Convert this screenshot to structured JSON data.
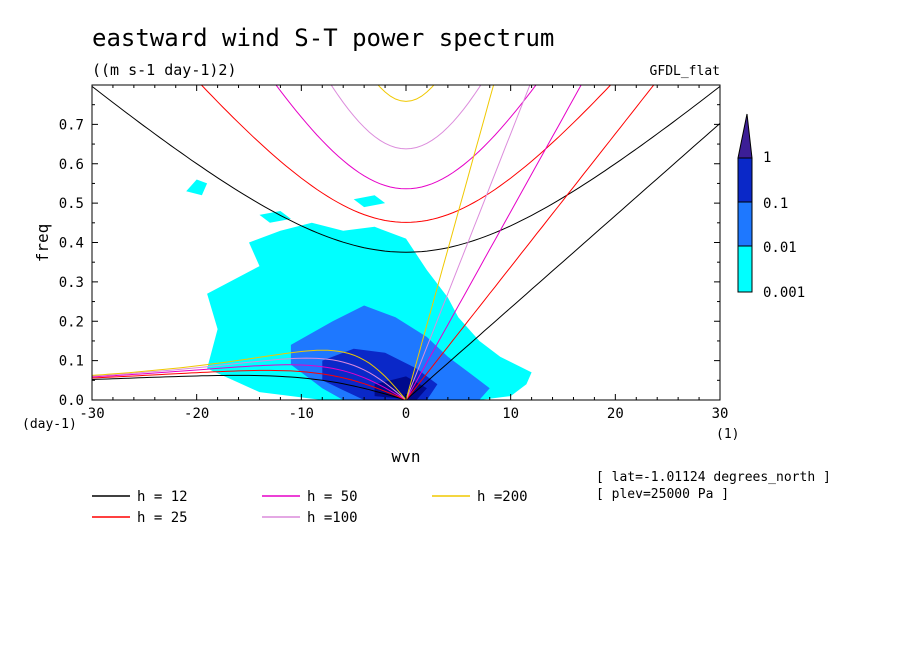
{
  "chart_data": {
    "type": "heatmap",
    "title": "eastward wind S-T power spectrum",
    "subtitle": "((m s-1 day-1)2)",
    "dataset_label": "GFDL_flat",
    "xlabel": "wvn",
    "ylabel": "freq",
    "x_unit_label": "(1)",
    "y_unit_label": "(day-1)",
    "xlim": [
      -30,
      30
    ],
    "ylim": [
      0,
      0.8
    ],
    "x_ticks": [
      -30,
      -20,
      -10,
      0,
      10,
      20,
      30
    ],
    "y_ticks": [
      0.0,
      0.1,
      0.2,
      0.3,
      0.4,
      0.5,
      0.6,
      0.7
    ],
    "x_tick_labels": [
      "-30",
      "-20",
      "-10",
      "0",
      "10",
      "20",
      "30"
    ],
    "y_tick_labels": [
      "0.0",
      "0.1",
      "0.2",
      "0.3",
      "0.4",
      "0.5",
      "0.6",
      "0.7"
    ],
    "colorbar": {
      "levels": [
        "0.001",
        "0.01",
        "0.1",
        "1"
      ],
      "colors": [
        "#00ffff",
        "#1e78ff",
        "#0a28c8",
        "#000a8c",
        "#3c1e96"
      ]
    },
    "contour_regions": [
      {
        "level": 0.001,
        "color": "#00ffff",
        "polygon": [
          [
            -14,
            0.02
          ],
          [
            -19,
            0.08
          ],
          [
            -18,
            0.18
          ],
          [
            -19,
            0.27
          ],
          [
            -14,
            0.34
          ],
          [
            -15,
            0.4
          ],
          [
            -12,
            0.43
          ],
          [
            -9,
            0.45
          ],
          [
            -6,
            0.43
          ],
          [
            -3,
            0.44
          ],
          [
            0,
            0.41
          ],
          [
            2,
            0.33
          ],
          [
            4,
            0.26
          ],
          [
            5,
            0.21
          ],
          [
            7,
            0.15
          ],
          [
            9,
            0.11
          ],
          [
            12,
            0.07
          ],
          [
            11.5,
            0.04
          ],
          [
            10,
            0.01
          ],
          [
            7,
            0.0
          ],
          [
            -8,
            0.0
          ]
        ]
      },
      {
        "level": 0.001,
        "color": "#00ffff",
        "polygon": [
          [
            -21,
            0.53
          ],
          [
            -20,
            0.56
          ],
          [
            -19,
            0.55
          ],
          [
            -19.5,
            0.52
          ]
        ]
      },
      {
        "level": 0.001,
        "color": "#00ffff",
        "polygon": [
          [
            -14,
            0.47
          ],
          [
            -12,
            0.48
          ],
          [
            -11,
            0.46
          ],
          [
            -13,
            0.45
          ]
        ]
      },
      {
        "level": 0.001,
        "color": "#00ffff",
        "polygon": [
          [
            -5,
            0.51
          ],
          [
            -3,
            0.52
          ],
          [
            -2,
            0.5
          ],
          [
            -4,
            0.49
          ]
        ]
      },
      {
        "level": 0.01,
        "color": "#1e78ff",
        "polygon": [
          [
            -8,
            0.03
          ],
          [
            -11,
            0.09
          ],
          [
            -11,
            0.14
          ],
          [
            -7,
            0.2
          ],
          [
            -4,
            0.24
          ],
          [
            -1,
            0.21
          ],
          [
            2,
            0.16
          ],
          [
            4,
            0.11
          ],
          [
            6,
            0.07
          ],
          [
            8,
            0.03
          ],
          [
            7,
            0.0
          ],
          [
            -6,
            0.0
          ]
        ]
      },
      {
        "level": 0.1,
        "color": "#0a28c8",
        "polygon": [
          [
            -8,
            0.05
          ],
          [
            -8,
            0.1
          ],
          [
            -5,
            0.13
          ],
          [
            -2,
            0.12
          ],
          [
            1,
            0.08
          ],
          [
            3,
            0.04
          ],
          [
            2,
            0.0
          ],
          [
            -4,
            0.0
          ]
        ]
      },
      {
        "level": 1,
        "color": "#000a8c",
        "polygon": [
          [
            -3,
            0.01
          ],
          [
            -3,
            0.04
          ],
          [
            0,
            0.06
          ],
          [
            2,
            0.03
          ],
          [
            1,
            0.0
          ]
        ]
      }
    ],
    "dispersion_curves": [
      {
        "name": "h = 12",
        "color": "#000000"
      },
      {
        "name": "h = 25",
        "color": "#ff0000"
      },
      {
        "name": "h = 50",
        "color": "#e600c8"
      },
      {
        "name": "h =100",
        "color": "#dc8cdc"
      },
      {
        "name": "h =200",
        "color": "#f0c800"
      }
    ],
    "legend_placement": "bottom",
    "grid": false
  },
  "annotations": [
    "[ lat=-1.01124 degrees_north ]",
    "[ plev=25000 Pa ]"
  ]
}
